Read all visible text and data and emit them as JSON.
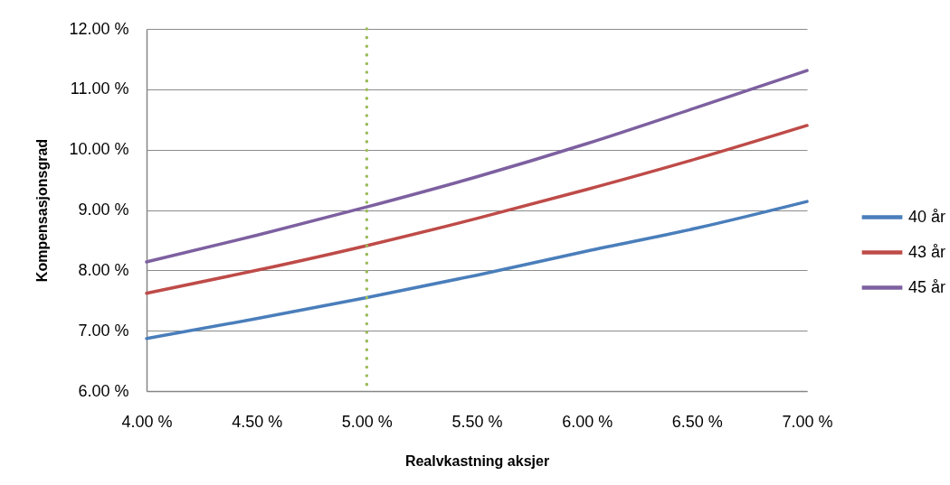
{
  "chart_data": {
    "type": "line",
    "xlabel": "Realvkastning aksjer",
    "ylabel": "Kompensasjonsgrad",
    "x": [
      4.0,
      4.5,
      5.0,
      5.5,
      6.0,
      6.5,
      7.0
    ],
    "series": [
      {
        "name": "40 år",
        "color": "#4a7ebb",
        "values": [
          6.87,
          7.2,
          7.55,
          7.92,
          8.32,
          8.7,
          9.14
        ]
      },
      {
        "name": "43 år",
        "color": "#be4b48",
        "values": [
          7.62,
          8.0,
          8.41,
          8.86,
          9.34,
          9.85,
          10.4
        ]
      },
      {
        "name": "45 år",
        "color": "#7d60a0",
        "values": [
          8.14,
          8.58,
          9.05,
          9.55,
          10.1,
          10.7,
          11.31
        ]
      }
    ],
    "xlim": [
      4.0,
      7.0
    ],
    "xticks": [
      {
        "value": 4.0,
        "label": "4.00 %"
      },
      {
        "value": 4.5,
        "label": "4.50 %"
      },
      {
        "value": 5.0,
        "label": "5.00 %"
      },
      {
        "value": 5.5,
        "label": "5.50 %"
      },
      {
        "value": 6.0,
        "label": "6.00 %"
      },
      {
        "value": 6.5,
        "label": "6.50 %"
      },
      {
        "value": 7.0,
        "label": "7.00 %"
      }
    ],
    "ylim": [
      6.0,
      12.0
    ],
    "yticks": [
      {
        "value": 6.0,
        "label": "6.00 %"
      },
      {
        "value": 7.0,
        "label": "7.00 %"
      },
      {
        "value": 8.0,
        "label": "8.00 %"
      },
      {
        "value": 9.0,
        "label": "9.00 %"
      },
      {
        "value": 10.0,
        "label": "10.00 %"
      },
      {
        "value": 11.0,
        "label": "11.00 %"
      },
      {
        "value": 12.0,
        "label": "12.00 %"
      }
    ],
    "ref_lines": [
      {
        "axis": "x",
        "value": 5.0,
        "color": "#9bbb59",
        "line_style": "dotted"
      }
    ],
    "grid": "y",
    "legend": "right",
    "marker": "none",
    "line_style": "solid"
  }
}
